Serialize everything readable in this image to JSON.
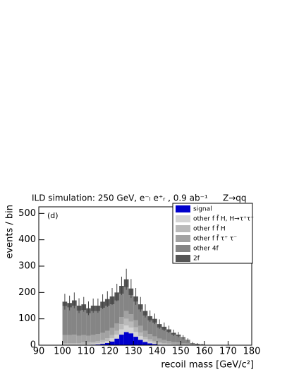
{
  "chart_data": {
    "type": "stacked-histogram",
    "title": "ILD simulation: 250 GeV, e⁻ₗ e⁺ᵣ , 0.9 ab⁻¹",
    "annotations": [
      "Z→qq",
      "(d)"
    ],
    "xlabel": "recoil mass [GeV/c²]",
    "ylabel": "events / bin",
    "xlim": [
      90,
      180
    ],
    "xticks": [
      90,
      100,
      110,
      120,
      130,
      140,
      150,
      160,
      170,
      180
    ],
    "ylim": [
      0,
      525
    ],
    "yticks": [
      0,
      100,
      200,
      300,
      400,
      500
    ],
    "bins": [
      100,
      102,
      104,
      106,
      108,
      110,
      112,
      114,
      116,
      118,
      120,
      122,
      124,
      126,
      128,
      130,
      132,
      134,
      136,
      138,
      140,
      142,
      144,
      146,
      148,
      150,
      152,
      154,
      156,
      158,
      160
    ],
    "series": [
      {
        "name": "signal",
        "color": "#0000cc",
        "values": [
          0,
          0,
          0,
          0,
          1,
          1,
          2,
          3,
          5,
          8,
          14,
          25,
          40,
          50,
          45,
          32,
          20,
          12,
          7,
          4,
          2,
          1,
          1,
          0,
          0,
          0,
          0,
          0,
          0,
          0
        ]
      },
      {
        "name": "other f f̄ H, H→τ⁺τ⁻",
        "color": "#d4d4d4",
        "values": [
          3,
          3,
          3,
          3,
          3,
          4,
          4,
          5,
          6,
          8,
          12,
          15,
          20,
          25,
          22,
          18,
          14,
          10,
          7,
          5,
          4,
          3,
          2,
          2,
          1,
          1,
          1,
          0,
          0,
          0
        ]
      },
      {
        "name": "other f f̄ H",
        "color": "#bababa",
        "values": [
          5,
          5,
          5,
          5,
          6,
          6,
          6,
          7,
          8,
          10,
          12,
          15,
          20,
          25,
          22,
          18,
          14,
          10,
          8,
          6,
          5,
          4,
          3,
          2,
          2,
          1,
          1,
          1,
          0,
          0
        ]
      },
      {
        "name": "other f f̄ τ⁺ τ⁻",
        "color": "#a2a2a2",
        "values": [
          30,
          30,
          32,
          28,
          28,
          25,
          27,
          27,
          28,
          28,
          27,
          27,
          27,
          30,
          28,
          27,
          25,
          22,
          20,
          18,
          14,
          12,
          10,
          8,
          7,
          5,
          4,
          2,
          1,
          1
        ]
      },
      {
        "name": "other 4f",
        "color": "#858585",
        "values": [
          110,
          105,
          110,
          95,
          95,
          85,
          90,
          87,
          95,
          95,
          90,
          88,
          88,
          90,
          73,
          70,
          62,
          58,
          52,
          52,
          42,
          38,
          34,
          28,
          25,
          20,
          12,
          4,
          3,
          2
        ]
      },
      {
        "name": "2f",
        "color": "#555555",
        "values": [
          17,
          17,
          20,
          19,
          22,
          19,
          21,
          21,
          23,
          26,
          30,
          30,
          30,
          30,
          25,
          20,
          20,
          18,
          16,
          15,
          13,
          12,
          10,
          7,
          5,
          3,
          2,
          1,
          1,
          0
        ]
      }
    ],
    "errors": [
      30,
      28,
      30,
      28,
      28,
      26,
      27,
      27,
      28,
      30,
      32,
      33,
      35,
      40,
      36,
      32,
      28,
      25,
      22,
      20,
      18,
      16,
      14,
      12,
      10,
      8,
      6,
      4,
      3,
      2
    ],
    "error_color": "#444444"
  }
}
